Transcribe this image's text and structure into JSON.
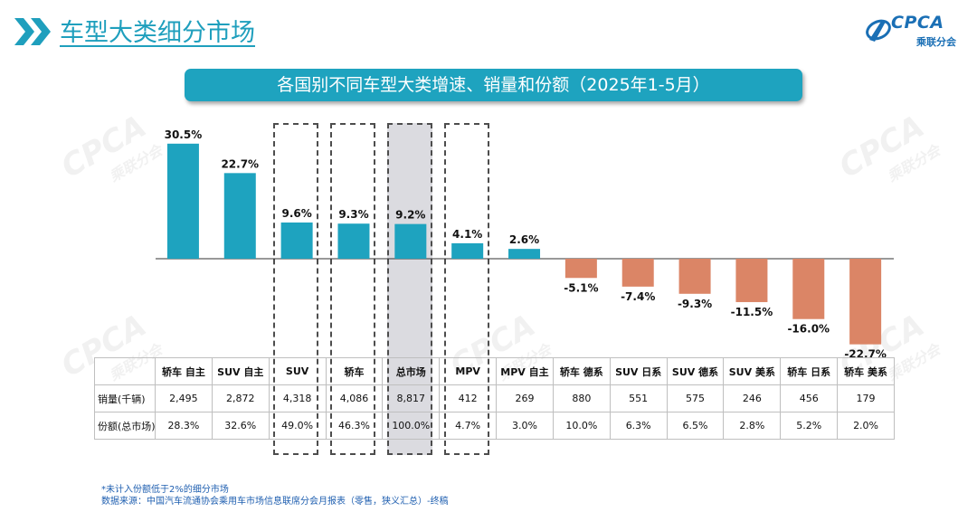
{
  "header": {
    "title": "车型大类细分市场",
    "logo_text": "CPCA",
    "logo_subtext": "乘联分会"
  },
  "chart_data": {
    "type": "bar",
    "title": "各国别不同车型大类增速、销量和份额（2025年1-5月）",
    "categories": [
      "轿车 自主",
      "SUV 自主",
      "SUV",
      "轿车",
      "总市场",
      "MPV",
      "MPV 自主",
      "轿车 德系",
      "SUV 日系",
      "SUV 德系",
      "SUV 美系",
      "轿车 日系",
      "轿车 美系"
    ],
    "values": [
      30.5,
      22.7,
      9.6,
      9.3,
      9.2,
      4.1,
      2.6,
      -5.1,
      -7.4,
      -9.3,
      -11.5,
      -16.0,
      -22.7
    ],
    "value_labels": [
      "30.5%",
      "22.7%",
      "9.6%",
      "9.3%",
      "9.2%",
      "4.1%",
      "2.6%",
      "-5.1%",
      "-7.4%",
      "-9.3%",
      "-11.5%",
      "-16.0%",
      "-22.7%"
    ],
    "unit": "%",
    "colors": {
      "positive": "#1ea3bf",
      "negative": "#db8566"
    },
    "highlighted": [
      "SUV",
      "轿车",
      "总市场",
      "MPV"
    ],
    "shaded": [
      "总市场"
    ],
    "table": {
      "rows": [
        {
          "label": "销量(千辆)",
          "values": [
            "2,495",
            "2,872",
            "4,318",
            "4,086",
            "8,817",
            "412",
            "269",
            "880",
            "551",
            "575",
            "246",
            "456",
            "179"
          ]
        },
        {
          "label": "份额(总市场)",
          "values": [
            "28.3%",
            "32.6%",
            "49.0%",
            "46.3%",
            "100.0%",
            "4.7%",
            "3.0%",
            "10.0%",
            "6.3%",
            "6.5%",
            "2.8%",
            "5.2%",
            "2.0%"
          ]
        }
      ]
    }
  },
  "footer": {
    "note": "*未计入份额低于2%的细分市场",
    "source": "数据来源：中国汽车流通协会乘用车市场信息联席分会月报表（零售，狭义汇总）-终稿"
  }
}
